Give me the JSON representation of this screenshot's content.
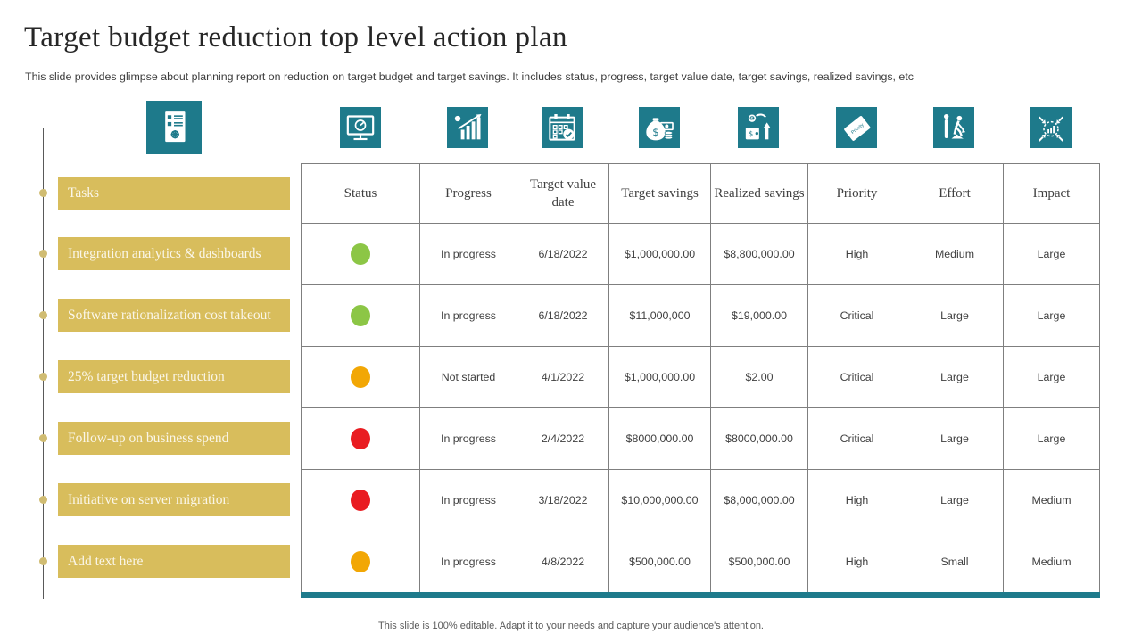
{
  "slide": {
    "title": "Target budget reduction top level action plan",
    "subtitle": "This slide provides glimpse about planning report on reduction on target budget and target savings. It includes status, progress, target value date, target savings, realized savings, etc",
    "footer": "This slide is 100% editable. Adapt it to your needs and capture your audience's attention."
  },
  "colors": {
    "teal": "#1E7A8B",
    "gold": "#D8BD5C",
    "gold_dot": "#D0BC72",
    "green": "#8CC646",
    "amber": "#F2A705",
    "red": "#E91C21",
    "table_border": "#7F7F7F",
    "line": "#595959"
  },
  "icon_strip": [
    "report-checklist-icon",
    "dashboard-monitor-icon",
    "growth-analysis-icon",
    "schedule-calendar-icon",
    "target-savings-icon",
    "realized-savings-icon",
    "priority-icon",
    "effort-icon",
    "impact-icon"
  ],
  "priority_icon_label": "Priority",
  "tasks": {
    "labels": [
      "Tasks",
      "Integration analytics & dashboards",
      "Software rationalization cost takeout",
      "25% target budget reduction",
      "Follow-up on business spend",
      "Initiative on server migration",
      "Add text here"
    ]
  },
  "table": {
    "columns": [
      "Status",
      "Progress",
      "Target value date",
      "Target savings",
      "Realized savings",
      "Priority",
      "Effort",
      "Impact"
    ],
    "rows": [
      {
        "status": "green",
        "cells": [
          "In progress",
          "6/18/2022",
          "$1,000,000.00",
          "$8,800,000.00",
          "High",
          "Medium",
          "Large"
        ]
      },
      {
        "status": "green",
        "cells": [
          "In progress",
          "6/18/2022",
          "$11,000,000",
          "$19,000.00",
          "Critical",
          "Large",
          "Large"
        ]
      },
      {
        "status": "amber",
        "cells": [
          "Not started",
          "4/1/2022",
          "$1,000,000.00",
          "$2.00",
          "Critical",
          "Large",
          "Large"
        ]
      },
      {
        "status": "red",
        "cells": [
          "In progress",
          "2/4/2022",
          "$8000,000.00",
          "$8000,000.00",
          "Critical",
          "Large",
          "Large"
        ]
      },
      {
        "status": "red",
        "cells": [
          "In progress",
          "3/18/2022",
          "$10,000,000.00",
          "$8,000,000.00",
          "High",
          "Large",
          "Medium"
        ]
      },
      {
        "status": "amber",
        "cells": [
          "In progress",
          "4/8/2022",
          "$500,000.00",
          "$500,000.00",
          "High",
          "Small",
          "Medium"
        ]
      }
    ]
  }
}
